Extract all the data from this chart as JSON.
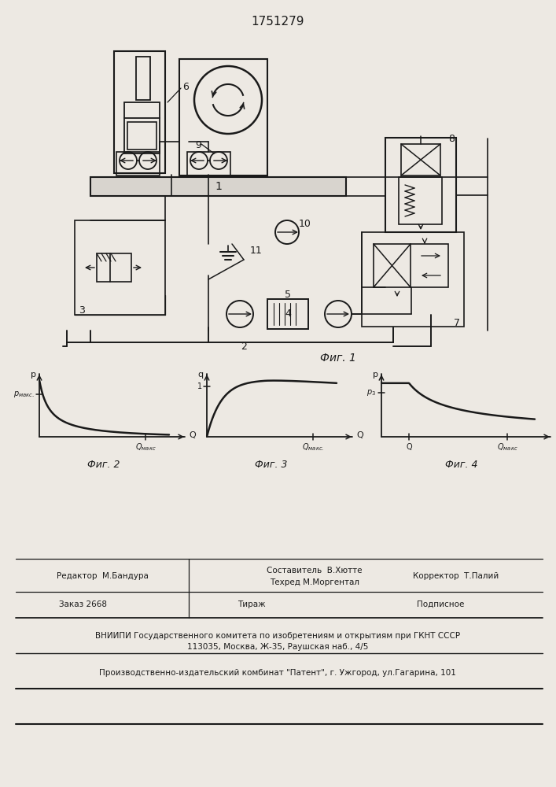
{
  "title": "1751279",
  "fig1_label": "Фиг. 1",
  "fig2_label": "Фиг. 2",
  "fig3_label": "Фиг. 3",
  "fig4_label": "Фиг. 4",
  "bg_color": "#ede9e3",
  "line_color": "#1a1a1a",
  "label_1": "1",
  "label_2": "2",
  "label_3": "3",
  "label_4": "4",
  "label_5": "5",
  "label_6": "6",
  "label_7": "7",
  "label_8": "8",
  "label_9": "9",
  "label_10": "10",
  "label_11": "11",
  "fig2_p_label": "$p_{\\\\makc.}$",
  "fig3_q_label": "1",
  "fig4_p3_label": "$p_3$",
  "footer_editor": "Редактор  М.Бандура",
  "footer_author": "Составитель  В.Хютте",
  "footer_tech": "Техред М.Моргентал",
  "footer_corr": "Корректор  Т.Палий",
  "footer_order": "Заказ 2668",
  "footer_tir": "Тираж",
  "footer_sub": "Подписное",
  "footer_vn": "ВНИИПИ Государственного комитета по изобретениям и открытиям при ГКНТ СССР",
  "footer_addr": "113035, Москва, Ж-35, Раушская наб., 4/5",
  "footer_prod": "Производственно-издательский комбинат \"Патент\", г. Ужгород, ул.Гагарина, 101"
}
